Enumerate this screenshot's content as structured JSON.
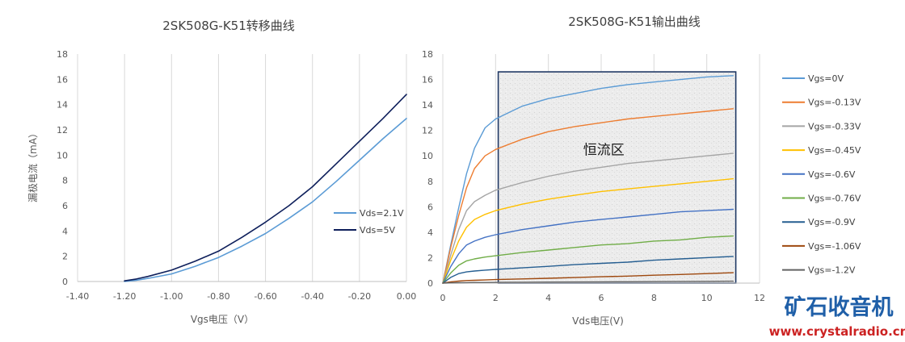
{
  "chart_data": [
    {
      "type": "line",
      "title": "2SK508G-K51转移曲线",
      "xlabel": "Vgs电压（V）",
      "ylabel": "漏极电流（mA）",
      "xlim": [
        -1.4,
        0
      ],
      "ylim": [
        0,
        18
      ],
      "x_ticks": [
        "-1.40",
        "-1.20",
        "-1.00",
        "-0.80",
        "-0.60",
        "-0.40",
        "-0.20",
        "0.00"
      ],
      "y_ticks": [
        "0",
        "2",
        "4",
        "6",
        "8",
        "10",
        "12",
        "14",
        "16",
        "18"
      ],
      "grid": "vertical",
      "legend_position": "right",
      "series": [
        {
          "name": "Vds=2.1V",
          "color": "#5b9bd5",
          "x": [
            -1.2,
            -1.15,
            -1.1,
            -1.0,
            -0.9,
            -0.8,
            -0.7,
            -0.6,
            -0.5,
            -0.4,
            -0.3,
            -0.2,
            -0.1,
            0.0
          ],
          "y": [
            0.0,
            0.1,
            0.25,
            0.6,
            1.2,
            1.9,
            2.8,
            3.8,
            5.0,
            6.3,
            7.9,
            9.6,
            11.3,
            12.9
          ]
        },
        {
          "name": "Vds=5V",
          "color": "#0e1f5b",
          "x": [
            -1.2,
            -1.15,
            -1.1,
            -1.0,
            -0.9,
            -0.8,
            -0.7,
            -0.6,
            -0.5,
            -0.4,
            -0.3,
            -0.2,
            -0.1,
            0.0
          ],
          "y": [
            0.05,
            0.2,
            0.4,
            0.9,
            1.6,
            2.4,
            3.5,
            4.7,
            6.0,
            7.5,
            9.3,
            11.1,
            12.9,
            14.8
          ]
        }
      ]
    },
    {
      "type": "line",
      "title": "2SK508G-K51输出曲线",
      "xlabel": "Vds电压(V)",
      "ylabel": "",
      "xlim": [
        0,
        12
      ],
      "ylim": [
        0,
        18
      ],
      "x_ticks": [
        "0",
        "2",
        "4",
        "6",
        "8",
        "10",
        "12"
      ],
      "y_ticks": [
        "0",
        "2",
        "4",
        "6",
        "8",
        "10",
        "12",
        "14",
        "16",
        "18"
      ],
      "grid": "vertical",
      "legend_position": "right",
      "region": {
        "label": "恒流区",
        "x_range": [
          2.1,
          11.1
        ],
        "y_range": [
          0,
          16.6
        ]
      },
      "series": [
        {
          "name": "Vgs=0V",
          "color": "#5b9bd5",
          "x": [
            0,
            0.3,
            0.6,
            0.9,
            1.2,
            1.6,
            2,
            3,
            4,
            5,
            6,
            7,
            8,
            9,
            10,
            11
          ],
          "y": [
            0,
            3.0,
            5.9,
            8.6,
            10.6,
            12.2,
            12.9,
            13.9,
            14.5,
            14.9,
            15.3,
            15.6,
            15.8,
            16.0,
            16.2,
            16.3
          ]
        },
        {
          "name": "Vgs=-0.13V",
          "color": "#ed7d31",
          "x": [
            0,
            0.3,
            0.6,
            0.9,
            1.2,
            1.6,
            2,
            3,
            4,
            5,
            6,
            7,
            8,
            9,
            10,
            11
          ],
          "y": [
            0,
            2.8,
            5.3,
            7.5,
            9.0,
            10.0,
            10.5,
            11.3,
            11.9,
            12.3,
            12.6,
            12.9,
            13.1,
            13.3,
            13.5,
            13.7
          ]
        },
        {
          "name": "Vgs=-0.33V",
          "color": "#a5a5a5",
          "x": [
            0,
            0.3,
            0.6,
            0.9,
            1.2,
            1.6,
            2,
            3,
            4,
            5,
            6,
            7,
            8,
            9,
            10,
            11
          ],
          "y": [
            0,
            2.2,
            4.2,
            5.7,
            6.4,
            6.9,
            7.3,
            7.9,
            8.4,
            8.8,
            9.1,
            9.4,
            9.6,
            9.8,
            10.0,
            10.2
          ]
        },
        {
          "name": "Vgs=-0.45V",
          "color": "#ffc000",
          "x": [
            0,
            0.3,
            0.6,
            0.9,
            1.2,
            1.6,
            2,
            3,
            4,
            5,
            6,
            7,
            8,
            9,
            10,
            11
          ],
          "y": [
            0,
            1.8,
            3.3,
            4.4,
            5.0,
            5.4,
            5.7,
            6.2,
            6.6,
            6.9,
            7.2,
            7.4,
            7.6,
            7.8,
            8.0,
            8.2
          ]
        },
        {
          "name": "Vgs=-0.6V",
          "color": "#4472c4",
          "x": [
            0,
            0.3,
            0.6,
            0.9,
            1.2,
            1.6,
            2,
            3,
            4,
            5,
            6,
            7,
            8,
            9,
            10,
            11
          ],
          "y": [
            0,
            1.3,
            2.3,
            3.0,
            3.3,
            3.6,
            3.8,
            4.2,
            4.5,
            4.8,
            5.0,
            5.2,
            5.4,
            5.6,
            5.7,
            5.8
          ]
        },
        {
          "name": "Vgs=-0.76V",
          "color": "#70ad47",
          "x": [
            0,
            0.3,
            0.6,
            0.9,
            1.2,
            1.6,
            2,
            3,
            4,
            5,
            6,
            7,
            8,
            9,
            10,
            11
          ],
          "y": [
            0,
            0.8,
            1.4,
            1.75,
            1.9,
            2.05,
            2.15,
            2.4,
            2.6,
            2.8,
            3.0,
            3.1,
            3.3,
            3.4,
            3.6,
            3.7
          ]
        },
        {
          "name": "Vgs=-0.9V",
          "color": "#255e91",
          "x": [
            0,
            0.3,
            0.6,
            0.9,
            1.2,
            1.6,
            2,
            3,
            4,
            5,
            6,
            7,
            8,
            9,
            10,
            11
          ],
          "y": [
            0,
            0.45,
            0.75,
            0.88,
            0.95,
            1.02,
            1.08,
            1.2,
            1.32,
            1.45,
            1.55,
            1.65,
            1.8,
            1.9,
            2.0,
            2.1
          ]
        },
        {
          "name": "Vgs=-1.06V",
          "color": "#9e480e",
          "x": [
            0,
            0.3,
            0.6,
            0.9,
            1.2,
            1.6,
            2,
            3,
            4,
            5,
            6,
            7,
            8,
            9,
            10,
            11
          ],
          "y": [
            0,
            0.1,
            0.16,
            0.2,
            0.22,
            0.25,
            0.28,
            0.33,
            0.38,
            0.44,
            0.5,
            0.55,
            0.62,
            0.68,
            0.75,
            0.82
          ]
        },
        {
          "name": "Vgs=-1.2V",
          "color": "#636363",
          "x": [
            0,
            0.3,
            0.6,
            0.9,
            1.2,
            1.6,
            2,
            3,
            4,
            5,
            6,
            7,
            8,
            9,
            10,
            11
          ],
          "y": [
            0,
            0.02,
            0.03,
            0.04,
            0.05,
            0.05,
            0.06,
            0.07,
            0.08,
            0.09,
            0.1,
            0.11,
            0.12,
            0.13,
            0.14,
            0.15
          ]
        }
      ]
    }
  ],
  "watermark": {
    "name": "矿石收音机",
    "url": "www.crystalradio.cn"
  }
}
